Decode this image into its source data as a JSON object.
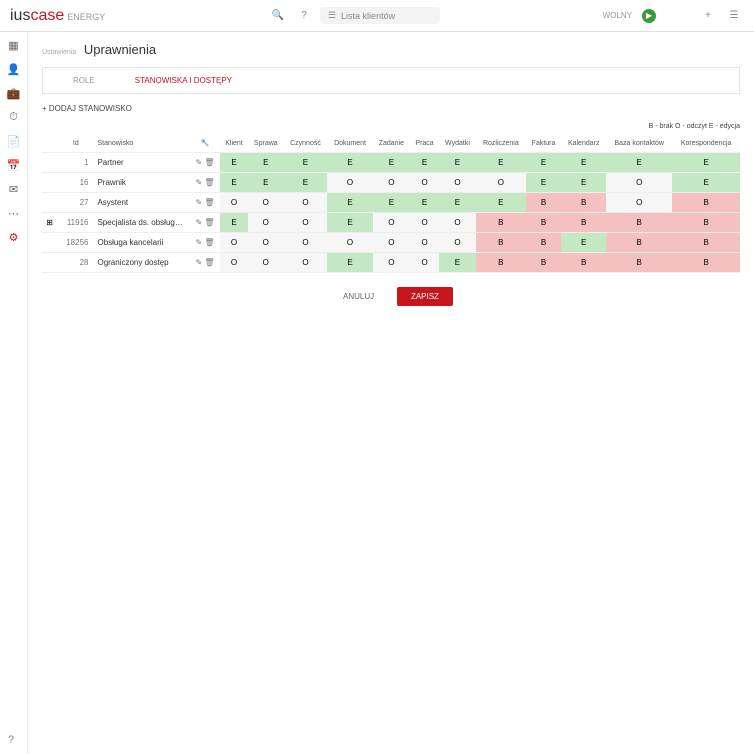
{
  "logo": {
    "prefix": "ius",
    "main": "case",
    "suffix": "ENERGY"
  },
  "search": {
    "placeholder": "Lista klientów"
  },
  "status": {
    "label": "WOLNY"
  },
  "page": {
    "breadcrumb": "Ustawienia",
    "title": "Uprawnienia"
  },
  "tabs": {
    "t1": "ROLE",
    "t2": "STANOWISKA I DOSTĘPY"
  },
  "addLabel": "+ DODAJ STANOWISKO",
  "legend": "B - brak  O - odczyt  E - edycja",
  "columns": {
    "expand": "",
    "id": "Id",
    "name": "Stanowisko",
    "tools": "",
    "c0": "Klient",
    "c1": "Sprawa",
    "c2": "Czynność",
    "c3": "Dokument",
    "c4": "Zadanie",
    "c5": "Praca",
    "c6": "Wydatki",
    "c7": "Rozliczenia",
    "c8": "Faktura",
    "c9": "Kalendarz",
    "c10": "Baza kontaktów",
    "c11": "Korespondencja"
  },
  "rows": [
    {
      "id": "1",
      "name": "Partner",
      "vals": [
        "E",
        "E",
        "E",
        "E",
        "E",
        "E",
        "E",
        "E",
        "E",
        "E",
        "E",
        "E"
      ]
    },
    {
      "id": "16",
      "name": "Prawnik",
      "vals": [
        "E",
        "E",
        "E",
        "O",
        "O",
        "O",
        "O",
        "O",
        "E",
        "E",
        "O",
        "E"
      ]
    },
    {
      "id": "27",
      "name": "Asystent",
      "vals": [
        "O",
        "O",
        "O",
        "E",
        "E",
        "E",
        "E",
        "E",
        "B",
        "B",
        "O",
        "B"
      ]
    },
    {
      "id": "11916",
      "name": "Specjalista ds. obsług…",
      "vals": [
        "E",
        "O",
        "O",
        "E",
        "O",
        "O",
        "O",
        "B",
        "B",
        "B",
        "B",
        "B"
      ],
      "expandable": true
    },
    {
      "id": "18256",
      "name": "Obsługa kancelarii",
      "vals": [
        "O",
        "O",
        "O",
        "O",
        "O",
        "O",
        "O",
        "B",
        "B",
        "E",
        "B",
        "B"
      ]
    },
    {
      "id": "28",
      "name": "Ograniczony dostęp",
      "vals": [
        "O",
        "O",
        "O",
        "E",
        "O",
        "O",
        "E",
        "B",
        "B",
        "B",
        "B",
        "B"
      ]
    }
  ],
  "buttons": {
    "cancel": "ANULUJ",
    "save": "ZAPISZ"
  },
  "colors": {
    "accent": "#c4161c",
    "green": "#c4e8c4",
    "red": "#f4c0c0",
    "grey": "#f6f6f6"
  }
}
